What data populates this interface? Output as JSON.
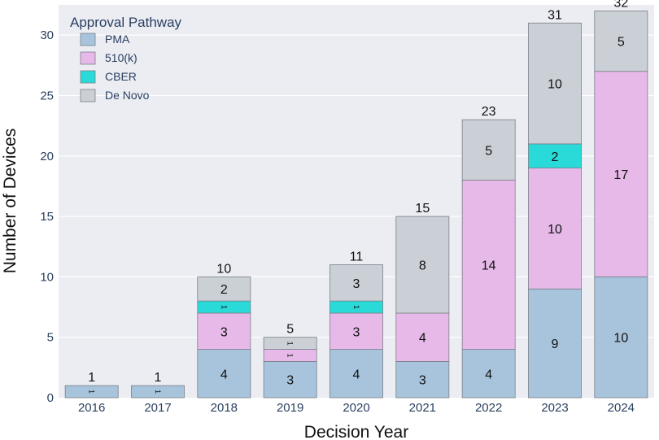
{
  "chart_data": {
    "type": "bar",
    "stacked": true,
    "categories": [
      "2016",
      "2017",
      "2018",
      "2019",
      "2020",
      "2021",
      "2022",
      "2023",
      "2024"
    ],
    "series": [
      {
        "name": "PMA",
        "color": "#a8c4dc",
        "values": [
          1,
          1,
          4,
          3,
          4,
          3,
          4,
          9,
          10
        ]
      },
      {
        "name": "510(k)",
        "color": "#e6b9e8",
        "values": [
          0,
          0,
          3,
          1,
          3,
          4,
          14,
          10,
          17
        ]
      },
      {
        "name": "CBER",
        "color": "#2adad8",
        "values": [
          0,
          0,
          1,
          0,
          1,
          0,
          0,
          2,
          0
        ]
      },
      {
        "name": "De Novo",
        "color": "#cbd0d6",
        "values": [
          0,
          0,
          2,
          1,
          3,
          8,
          5,
          10,
          5
        ]
      }
    ],
    "totals": [
      1,
      1,
      10,
      5,
      11,
      15,
      23,
      31,
      32
    ],
    "xlabel": "Decision Year",
    "ylabel": "Number of Devices",
    "ylim": [
      0,
      32.5
    ],
    "yticks": [
      0,
      5,
      10,
      15,
      20,
      25,
      30
    ],
    "legend_title": "Approval Pathway",
    "legend_position": "top-left",
    "grid": true,
    "plot_background": "#ebedf3",
    "bar_edge_color": "#7a7f86"
  }
}
